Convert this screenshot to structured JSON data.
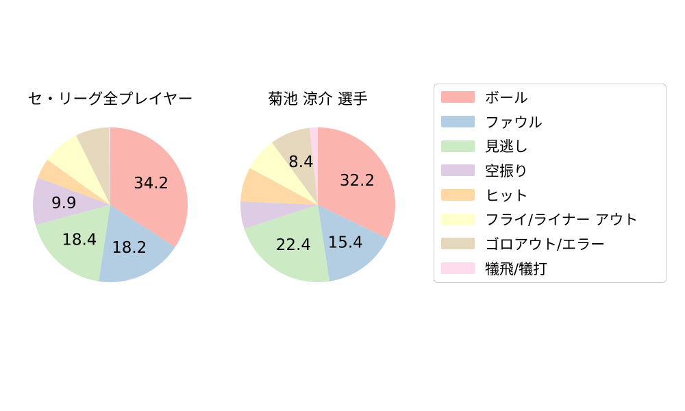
{
  "figure": {
    "background": "#ffffff",
    "text_color": "#000000",
    "legend_border_color": "#cccccc"
  },
  "legend": {
    "items": [
      {
        "key": "ball",
        "label": "ボール",
        "color": "#fbb4ae"
      },
      {
        "key": "foul",
        "label": "ファウル",
        "color": "#b3cde3"
      },
      {
        "key": "called-strike",
        "label": "見逃し",
        "color": "#ccebc5"
      },
      {
        "key": "swinging-strike",
        "label": "空振り",
        "color": "#decbe4"
      },
      {
        "key": "hit",
        "label": "ヒット",
        "color": "#fed9a6"
      },
      {
        "key": "fly-liner-out",
        "label": "フライ/ライナー アウト",
        "color": "#ffffcc"
      },
      {
        "key": "ground-out-error",
        "label": "ゴロアウト/エラー",
        "color": "#e5d8bd"
      },
      {
        "key": "sacrifice",
        "label": "犠飛/犠打",
        "color": "#fddaec"
      }
    ]
  },
  "chart_data": [
    {
      "type": "pie",
      "title": "セ・リーグ全プレイヤー",
      "categories": [
        "ボール",
        "ファウル",
        "見逃し",
        "空振り",
        "ヒット",
        "フライ/ライナー アウト",
        "ゴロアウト/エラー",
        "犠飛/犠打"
      ],
      "values": [
        34.2,
        18.2,
        18.4,
        9.9,
        4.2,
        7.8,
        7.0,
        0.3
      ],
      "labels": [
        "34.2",
        "18.2",
        "18.4",
        "9.9",
        null,
        null,
        null,
        null
      ],
      "colors": [
        "#fbb4ae",
        "#b3cde3",
        "#ccebc5",
        "#decbe4",
        "#fed9a6",
        "#ffffcc",
        "#e5d8bd",
        "#fddaec"
      ],
      "start_angle": "top",
      "direction": "clockwise",
      "label_radius_fraction": 0.6,
      "legend_position": "right"
    },
    {
      "type": "pie",
      "title": "菊池 涼介  選手",
      "categories": [
        "ボール",
        "ファウル",
        "見逃し",
        "空振り",
        "ヒット",
        "フライ/ライナー アウト",
        "ゴロアウト/エラー",
        "犠飛/犠打"
      ],
      "values": [
        32.2,
        15.4,
        22.4,
        5.7,
        7.2,
        7.0,
        8.4,
        1.7
      ],
      "labels": [
        "32.2",
        "15.4",
        "22.4",
        null,
        null,
        null,
        "8.4",
        null
      ],
      "colors": [
        "#fbb4ae",
        "#b3cde3",
        "#ccebc5",
        "#decbe4",
        "#fed9a6",
        "#ffffcc",
        "#e5d8bd",
        "#fddaec"
      ],
      "start_angle": "top",
      "direction": "clockwise",
      "label_radius_fraction": 0.6,
      "legend_position": "right"
    }
  ]
}
